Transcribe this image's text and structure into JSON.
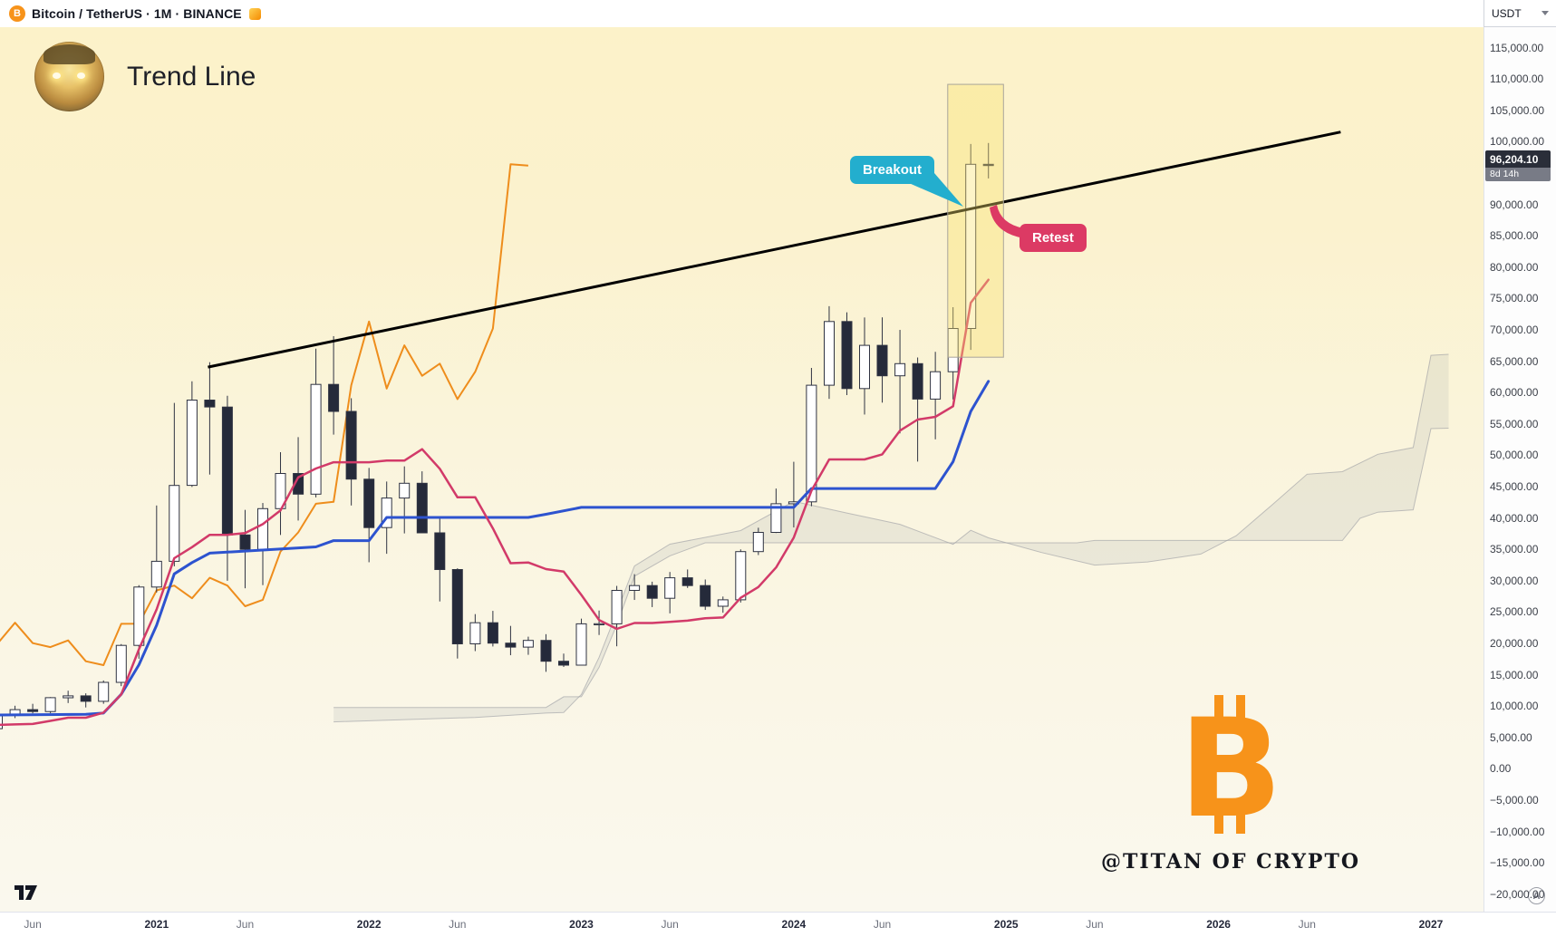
{
  "header": {
    "symbol": "Bitcoin / TetherUS · 1M · BINANCE",
    "currency": "USDT"
  },
  "chart_title": "Trend Line",
  "annotations": {
    "breakout": "Breakout",
    "retest": "Retest"
  },
  "watermark": {
    "symbol_letter": "B",
    "handle": "@TITAN OF CRYPTO"
  },
  "price_axis": {
    "auto_label": "A",
    "tag": {
      "price": "96,204.10",
      "countdown": "8d 14h",
      "value": 96204.1
    },
    "ticks": [
      [
        115000,
        "115,000.00"
      ],
      [
        110000,
        "110,000.00"
      ],
      [
        105000,
        "105,000.00"
      ],
      [
        100000,
        "100,000.00"
      ],
      [
        95000,
        "95,000.00"
      ],
      [
        90000,
        "90,000.00"
      ],
      [
        85000,
        "85,000.00"
      ],
      [
        80000,
        "80,000.00"
      ],
      [
        75000,
        "75,000.00"
      ],
      [
        70000,
        "70,000.00"
      ],
      [
        65000,
        "65,000.00"
      ],
      [
        60000,
        "60,000.00"
      ],
      [
        55000,
        "55,000.00"
      ],
      [
        50000,
        "50,000.00"
      ],
      [
        45000,
        "45,000.00"
      ],
      [
        40000,
        "40,000.00"
      ],
      [
        35000,
        "35,000.00"
      ],
      [
        30000,
        "30,000.00"
      ],
      [
        25000,
        "25,000.00"
      ],
      [
        20000,
        "20,000.00"
      ],
      [
        15000,
        "15,000.00"
      ],
      [
        10000,
        "10,000.00"
      ],
      [
        5000,
        "5,000.00"
      ],
      [
        0,
        "0.00"
      ],
      [
        -5000,
        "−5,000.00"
      ],
      [
        -10000,
        "−10,000.00"
      ],
      [
        -15000,
        "−15,000.00"
      ],
      [
        -20000,
        "−20,000.00"
      ]
    ]
  },
  "time_axis": {
    "ticks": [
      [
        0,
        "Jun",
        0
      ],
      [
        7,
        "2021",
        1
      ],
      [
        12,
        "Jun",
        0
      ],
      [
        19,
        "2022",
        1
      ],
      [
        24,
        "Jun",
        0
      ],
      [
        31,
        "2023",
        1
      ],
      [
        36,
        "Jun",
        0
      ],
      [
        43,
        "2024",
        1
      ],
      [
        48,
        "Jun",
        0
      ],
      [
        55,
        "2025",
        1
      ],
      [
        60,
        "Jun",
        0
      ],
      [
        67,
        "2026",
        1
      ],
      [
        72,
        "Jun",
        0
      ],
      [
        79,
        "2027",
        1
      ]
    ]
  },
  "colors": {
    "bitcoin_orange": "#F7931A",
    "candle_up": "#FFFFFF",
    "candle_down": "#252A3A",
    "candle_border": "#2F3342",
    "tenkan_pink": "#D23A69",
    "kijun_blue": "#2D53CF",
    "chikou_orange": "#EE8D1C",
    "cloud_fill": "rgba(145,148,156,0.14)",
    "cloud_line": "rgba(145,148,156,0.55)",
    "trend_line": "#000000",
    "box_fill": "rgba(250,225,110,0.38)",
    "box_border": "#A9A49A",
    "breakout_bubble": "#23AECE",
    "retest_bubble": "#DC3A64",
    "price_tag_bg": "#2A2E39",
    "countdown_bg": "#787B86",
    "bg_top": "#FCF2C9",
    "bg_bottom": "#FAF8EE"
  },
  "chart_data": {
    "type": "candlestick",
    "symbol": "BTCUSDT",
    "exchange": "BINANCE",
    "timeframe": "1M",
    "title": "Trend Line",
    "y_range": [
      -20000,
      115000
    ],
    "grid": false,
    "first_month": "2020-04",
    "first_month_offset": -2,
    "candles_format": [
      "open",
      "high",
      "low",
      "close"
    ],
    "candles": [
      [
        6420,
        9470,
        6150,
        8630
      ],
      [
        8630,
        10070,
        8100,
        9450
      ],
      [
        9450,
        10380,
        8850,
        9140
      ],
      [
        9140,
        11450,
        8900,
        11350
      ],
      [
        11350,
        12470,
        10500,
        11650
      ],
      [
        11650,
        12050,
        9800,
        10780
      ],
      [
        10780,
        14100,
        10380,
        13800
      ],
      [
        13800,
        19900,
        13200,
        19700
      ],
      [
        19700,
        29300,
        17570,
        29000
      ],
      [
        29000,
        42000,
        28130,
        33100
      ],
      [
        33100,
        58350,
        32300,
        45200
      ],
      [
        45200,
        61800,
        44950,
        58800
      ],
      [
        58800,
        64850,
        46930,
        57700
      ],
      [
        57700,
        59500,
        30000,
        37300
      ],
      [
        37300,
        41300,
        28800,
        35000
      ],
      [
        35000,
        42400,
        29300,
        41500
      ],
      [
        41500,
        50500,
        37300,
        47100
      ],
      [
        47100,
        52900,
        39600,
        43800
      ],
      [
        43800,
        67000,
        43300,
        61300
      ],
      [
        61300,
        69000,
        53300,
        57000
      ],
      [
        57000,
        59100,
        42000,
        46200
      ],
      [
        46200,
        47990,
        32950,
        38480
      ],
      [
        38480,
        45820,
        34300,
        43190
      ],
      [
        43190,
        48240,
        37550,
        45540
      ],
      [
        45540,
        47450,
        37580,
        37640
      ],
      [
        37640,
        40000,
        26700,
        31790
      ],
      [
        31790,
        31990,
        17600,
        19940
      ],
      [
        19940,
        24680,
        18780,
        23300
      ],
      [
        23300,
        25200,
        19520,
        20050
      ],
      [
        20050,
        22800,
        18125,
        19420
      ],
      [
        19420,
        21080,
        18190,
        20490
      ],
      [
        20490,
        21480,
        15480,
        17160
      ],
      [
        17160,
        18390,
        16260,
        16540
      ],
      [
        16540,
        23960,
        16490,
        23130
      ],
      [
        23130,
        25250,
        21350,
        23140
      ],
      [
        23140,
        29180,
        19550,
        28470
      ],
      [
        28470,
        31050,
        26940,
        29230
      ],
      [
        29230,
        29850,
        25800,
        27210
      ],
      [
        27210,
        31400,
        24800,
        30470
      ],
      [
        30470,
        31800,
        28850,
        29230
      ],
      [
        29230,
        30200,
        25350,
        25930
      ],
      [
        25930,
        27480,
        24900,
        26960
      ],
      [
        26960,
        35000,
        26530,
        34650
      ],
      [
        34650,
        38450,
        34100,
        37710
      ],
      [
        37710,
        44700,
        37610,
        42280
      ],
      [
        42280,
        48970,
        38500,
        42580
      ],
      [
        42580,
        63930,
        41880,
        61170
      ],
      [
        61170,
        73780,
        59000,
        71330
      ],
      [
        71330,
        72800,
        59600,
        60640
      ],
      [
        60640,
        71980,
        56500,
        67530
      ],
      [
        67530,
        71997,
        58400,
        62680
      ],
      [
        62680,
        70000,
        53500,
        64620
      ],
      [
        64620,
        65600,
        49000,
        58970
      ],
      [
        58970,
        66500,
        52550,
        63330
      ],
      [
        63330,
        73620,
        58900,
        70220
      ],
      [
        70220,
        99650,
        66800,
        96400
      ],
      [
        96400,
        99800,
        94150,
        96204
      ]
    ],
    "overlays": {
      "tenkan": [
        [
          -2,
          7000
        ],
        [
          -1,
          7100
        ],
        [
          0,
          7165
        ],
        [
          1,
          7650
        ],
        [
          2,
          8160
        ],
        [
          3,
          8160
        ],
        [
          4,
          8975
        ],
        [
          5,
          11875
        ],
        [
          6,
          19075
        ],
        [
          7,
          25425
        ],
        [
          8,
          33600
        ],
        [
          9,
          35350
        ],
        [
          10,
          37325
        ],
        [
          11,
          37325
        ],
        [
          12,
          37615
        ],
        [
          13,
          39025
        ],
        [
          14,
          41210
        ],
        [
          15,
          46490
        ],
        [
          16,
          47900
        ],
        [
          17,
          48900
        ],
        [
          19,
          48900
        ],
        [
          20,
          49150
        ],
        [
          21,
          49150
        ],
        [
          22,
          50975
        ],
        [
          23,
          47850
        ],
        [
          24,
          43300
        ],
        [
          25,
          43300
        ],
        [
          26,
          38350
        ],
        [
          27,
          32795
        ],
        [
          28,
          32920
        ],
        [
          29,
          31860
        ],
        [
          30,
          31465
        ],
        [
          31,
          27740
        ],
        [
          32,
          23735
        ],
        [
          33,
          22330
        ],
        [
          34,
          23265
        ],
        [
          35,
          23265
        ],
        [
          36,
          23440
        ],
        [
          37,
          23640
        ],
        [
          38,
          24030
        ],
        [
          39,
          24145
        ],
        [
          40,
          27275
        ],
        [
          41,
          29000
        ],
        [
          42,
          32125
        ],
        [
          43,
          36885
        ],
        [
          44,
          44365
        ],
        [
          45,
          49340
        ],
        [
          47,
          49340
        ],
        [
          48,
          50155
        ],
        [
          49,
          53940
        ],
        [
          50,
          55695
        ],
        [
          51,
          56140
        ],
        [
          52,
          57830
        ],
        [
          53,
          74325
        ],
        [
          54,
          78000
        ]
      ],
      "kijun": [
        [
          -2,
          8600
        ],
        [
          3,
          8700
        ],
        [
          4,
          8900
        ],
        [
          5,
          11900
        ],
        [
          6,
          16600
        ],
        [
          7,
          22900
        ],
        [
          8,
          31100
        ],
        [
          9,
          32900
        ],
        [
          10,
          34400
        ],
        [
          16,
          35400
        ],
        [
          17,
          36400
        ],
        [
          19,
          36400
        ],
        [
          20,
          40100
        ],
        [
          28,
          40100
        ],
        [
          29,
          40600
        ],
        [
          31,
          41700
        ],
        [
          43,
          41700
        ],
        [
          44,
          44700
        ],
        [
          51,
          44700
        ],
        [
          52,
          49000
        ],
        [
          53,
          57000
        ],
        [
          54,
          61800
        ]
      ],
      "chikou": [
        [
          -2,
          19940
        ],
        [
          -1,
          23300
        ],
        [
          0,
          20050
        ],
        [
          1,
          19420
        ],
        [
          2,
          20490
        ],
        [
          3,
          17160
        ],
        [
          4,
          16540
        ],
        [
          5,
          23130
        ],
        [
          6,
          23140
        ],
        [
          7,
          28470
        ],
        [
          8,
          29230
        ],
        [
          9,
          27210
        ],
        [
          10,
          30470
        ],
        [
          11,
          29230
        ],
        [
          12,
          25930
        ],
        [
          13,
          26960
        ],
        [
          14,
          34650
        ],
        [
          15,
          37710
        ],
        [
          16,
          42280
        ],
        [
          17,
          42580
        ],
        [
          18,
          61170
        ],
        [
          19,
          71330
        ],
        [
          20,
          60640
        ],
        [
          21,
          67530
        ],
        [
          22,
          62680
        ],
        [
          23,
          64620
        ],
        [
          24,
          58970
        ],
        [
          25,
          63330
        ],
        [
          26,
          70220
        ],
        [
          27,
          96400
        ],
        [
          28,
          96204
        ]
      ],
      "senkou_a": [
        [
          17,
          7500
        ],
        [
          25,
          8200
        ],
        [
          29,
          8900
        ],
        [
          30,
          9000
        ],
        [
          31,
          11875
        ],
        [
          32,
          17800
        ],
        [
          33,
          25000
        ],
        [
          34,
          32350
        ],
        [
          36,
          35840
        ],
        [
          40,
          38000
        ],
        [
          43,
          42660
        ],
        [
          46,
          40800
        ],
        [
          49,
          39000
        ],
        [
          52,
          35800
        ],
        [
          53,
          38050
        ],
        [
          54,
          36850
        ],
        [
          57,
          34500
        ],
        [
          60,
          32500
        ],
        [
          63,
          33000
        ],
        [
          66,
          34260
        ],
        [
          68,
          37180
        ],
        [
          70,
          42035
        ],
        [
          72,
          46985
        ],
        [
          74,
          47390
        ],
        [
          76,
          50160
        ],
        [
          78,
          51230
        ],
        [
          79,
          65945
        ],
        [
          80,
          66100
        ]
      ],
      "senkou_b": [
        [
          17,
          9800
        ],
        [
          29,
          9800
        ],
        [
          30,
          11500
        ],
        [
          31,
          11500
        ],
        [
          32,
          16200
        ],
        [
          33,
          23000
        ],
        [
          34,
          30725
        ],
        [
          36,
          33975
        ],
        [
          38,
          36050
        ],
        [
          59,
          36050
        ],
        [
          60,
          36425
        ],
        [
          74,
          36425
        ],
        [
          75,
          39965
        ],
        [
          76,
          40940
        ],
        [
          78,
          41315
        ],
        [
          79,
          54250
        ],
        [
          80,
          54325
        ]
      ]
    },
    "trend_line": {
      "points": [
        [
          9.9,
          64060
        ],
        [
          73.9,
          101550
        ]
      ]
    },
    "highlight_box": {
      "m1": 51.7,
      "m2": 54.85,
      "p_top": 109150,
      "p_bottom": 65640
    },
    "breakout_anchor": [
      52.3,
      88900
    ],
    "retest_anchor": [
      53.8,
      89780
    ]
  }
}
